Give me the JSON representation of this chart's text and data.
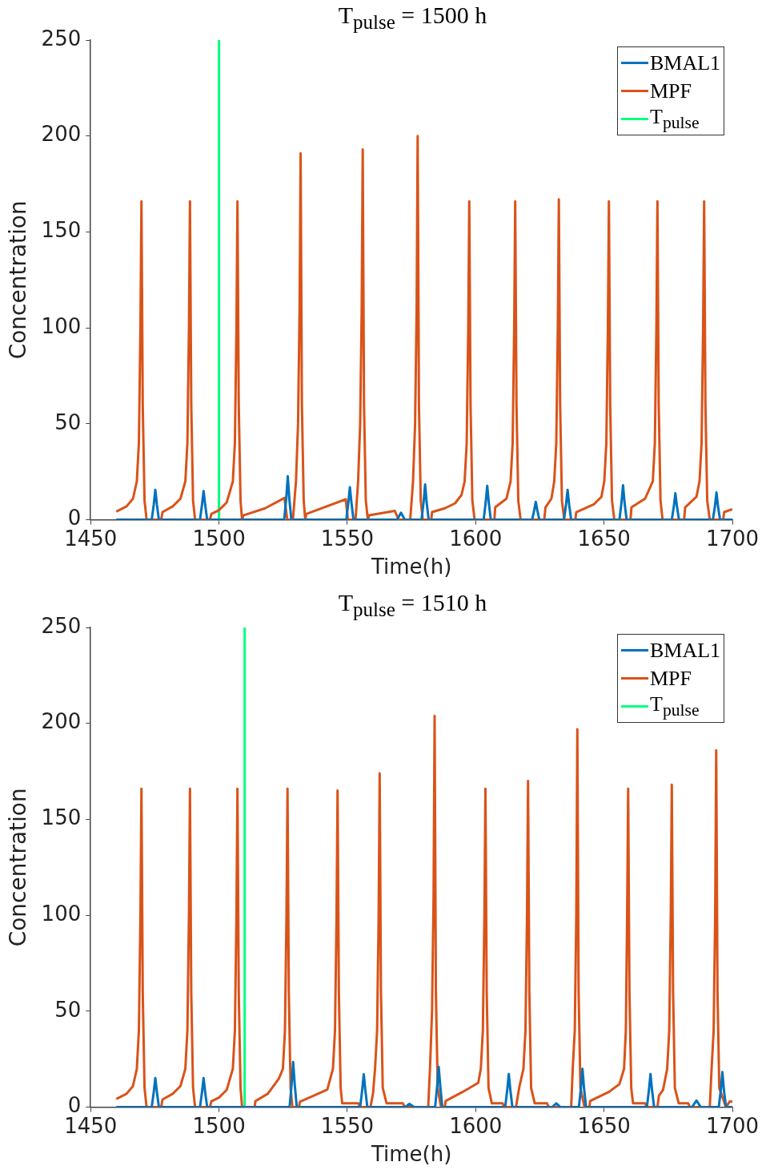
{
  "chart_data": [
    {
      "type": "line",
      "title": "T$_{pulse}$ = 1500 h",
      "xlabel": "Time(h)",
      "ylabel": "Concentration",
      "xlim": [
        1450,
        1700
      ],
      "xticks": [
        1450,
        1500,
        1550,
        1600,
        1650,
        1700
      ],
      "ylim": [
        0,
        250
      ],
      "yticks": [
        0,
        50,
        100,
        150,
        200,
        250
      ],
      "grid": false,
      "legend": "top right",
      "series": [
        {
          "name": "BMAL1",
          "color": "#0072bd",
          "x": [
            1460,
            1473.8,
            1474.6,
            1475.2,
            1475.8,
            1476.6,
            1492.6,
            1493.4,
            1494,
            1494.6,
            1495.4,
            1525.4,
            1526.2,
            1526.8,
            1527.4,
            1528.2,
            1549.6,
            1550.4,
            1551,
            1551.6,
            1552.4,
            1569.4,
            1570.9,
            1572.4,
            1578.9,
            1579.7,
            1580.3,
            1580.9,
            1581.7,
            1603.1,
            1603.9,
            1604.5,
            1605.1,
            1605.9,
            1622,
            1622.8,
            1623.4,
            1624,
            1624.8,
            1634.4,
            1635.2,
            1635.8,
            1636.4,
            1637.2,
            1656,
            1656.8,
            1657.4,
            1658,
            1658.8,
            1676.4,
            1677.2,
            1677.8,
            1678.4,
            1679.2,
            1692.4,
            1693.2,
            1693.8,
            1694.4,
            1695.2,
            1700
          ],
          "values": [
            0,
            0,
            8,
            15.6,
            8,
            0,
            0,
            8,
            15,
            8,
            0,
            0,
            11,
            22.7,
            11,
            0,
            0,
            9,
            17,
            9,
            0,
            0,
            3.7,
            0,
            0,
            9,
            18.4,
            9,
            0,
            0,
            9,
            17.7,
            9,
            0,
            0,
            5,
            9.3,
            5,
            0,
            0,
            8,
            15.6,
            8,
            0,
            0,
            9,
            18,
            9,
            0,
            0,
            7,
            13.8,
            7,
            0,
            0,
            7,
            14.2,
            7,
            0,
            0
          ]
        },
        {
          "name": "MPF",
          "color": "#d95319",
          "x": [
            1460,
            1464,
            1466.5,
            1468,
            1468.8,
            1469.4,
            1469.8,
            1470.3,
            1471,
            1471.8,
            1477.5,
            1478,
            1482,
            1485,
            1486.9,
            1487.7,
            1488.3,
            1488.7,
            1489.2,
            1489.9,
            1490.7,
            1496.5,
            1497,
            1500,
            1503,
            1505.4,
            1506.2,
            1506.8,
            1507.2,
            1507.7,
            1508.4,
            1509,
            1509.5,
            1518,
            1525.5,
            1526.6,
            1528.8,
            1530,
            1530.8,
            1531.4,
            1531.8,
            1532.3,
            1533,
            1533.6,
            1534,
            1542,
            1549.4,
            1550.2,
            1553.2,
            1554.2,
            1555,
            1555.6,
            1556,
            1556.5,
            1557.2,
            1558,
            1558.5,
            1568.5,
            1570,
            1574.5,
            1575.6,
            1576.4,
            1577,
            1577.4,
            1577.9,
            1578.6,
            1579.4,
            1582.7,
            1583,
            1588,
            1592,
            1594.5,
            1595.7,
            1596.5,
            1597.1,
            1597.5,
            1598,
            1598.7,
            1599.6,
            1607.3,
            1607.6,
            1612,
            1613.6,
            1614.4,
            1615,
            1615.4,
            1615.9,
            1616.6,
            1617.5,
            1626.7,
            1627.2,
            1629.5,
            1630.6,
            1631.4,
            1632,
            1632.4,
            1632.9,
            1633.6,
            1634.5,
            1638.8,
            1639.2,
            1646,
            1649,
            1650.1,
            1650.9,
            1651.5,
            1651.9,
            1652.4,
            1653.1,
            1654,
            1660.3,
            1660.7,
            1666,
            1669,
            1669.8,
            1670.4,
            1670.8,
            1671.3,
            1672,
            1672.8,
            1681.2,
            1681.6,
            1686,
            1687.2,
            1688,
            1688.6,
            1689,
            1689.5,
            1690.2,
            1691.2,
            1696.4,
            1696.8,
            1700
          ],
          "values": [
            4.3,
            7,
            11,
            20,
            40,
            100,
            166,
            60,
            10,
            0,
            0,
            4,
            7,
            11,
            20,
            40,
            100,
            166,
            60,
            10,
            0,
            0,
            3,
            5,
            9,
            20,
            40,
            100,
            166,
            60,
            10,
            0,
            2.3,
            6,
            11.4,
            0,
            0,
            20,
            50,
            110,
            191,
            60,
            10,
            0,
            3,
            7,
            10.7,
            0,
            0,
            20,
            50,
            110,
            193,
            60,
            10,
            0,
            2.3,
            4.6,
            0,
            0,
            20,
            50,
            110,
            200,
            60,
            10,
            0,
            0,
            4,
            6,
            8.6,
            13,
            20,
            40,
            100,
            166,
            60,
            10,
            0,
            0,
            6.5,
            11,
            20,
            40,
            100,
            166,
            60,
            10,
            0,
            0,
            6.5,
            11,
            20,
            40,
            100,
            167,
            60,
            10,
            0,
            0,
            4,
            8,
            12,
            20,
            40,
            100,
            166,
            60,
            10,
            0,
            0,
            6.5,
            11,
            20,
            40,
            100,
            166,
            60,
            10,
            0,
            0,
            6.5,
            12,
            20,
            40,
            100,
            166,
            60,
            10,
            0,
            0,
            4,
            5.5
          ]
        },
        {
          "name": "T$_{pulse}$",
          "color": "#00ff80",
          "x": [
            1500,
            1500
          ],
          "values": [
            0,
            250
          ]
        }
      ]
    },
    {
      "type": "line",
      "title": "T$_{pulse}$ = 1510 h",
      "xlabel": "Time(h)",
      "ylabel": "Concentration",
      "xlim": [
        1450,
        1700
      ],
      "xticks": [
        1450,
        1500,
        1550,
        1600,
        1650,
        1700
      ],
      "ylim": [
        0,
        250
      ],
      "yticks": [
        0,
        50,
        100,
        150,
        200,
        250
      ],
      "grid": false,
      "legend": "top right",
      "series": [
        {
          "name": "BMAL1",
          "color": "#0072bd",
          "x": [
            1460,
            1473.8,
            1474.6,
            1475.2,
            1475.8,
            1476.6,
            1492.6,
            1493.4,
            1494,
            1494.6,
            1495.4,
            1527.5,
            1528.3,
            1528.9,
            1529.5,
            1530.3,
            1555,
            1555.8,
            1556.4,
            1557,
            1557.8,
            1572.5,
            1574.2,
            1576,
            1584.2,
            1585,
            1585.6,
            1586.2,
            1587,
            1611.5,
            1612.3,
            1612.9,
            1613.5,
            1614.3,
            1629.8,
            1631.4,
            1633,
            1640.2,
            1641,
            1641.6,
            1642.2,
            1643,
            1666.7,
            1667.5,
            1668.1,
            1668.7,
            1669.5,
            1684.3,
            1686,
            1687.7,
            1694.7,
            1695.5,
            1696.1,
            1696.7,
            1697.5,
            1700
          ],
          "values": [
            0,
            0,
            8,
            15.2,
            8,
            0,
            0,
            8,
            15.2,
            8,
            0,
            0,
            12,
            23.5,
            12,
            0,
            0,
            9,
            17.2,
            9,
            0,
            0,
            1.7,
            0,
            0,
            11,
            21,
            11,
            0,
            0,
            9,
            17.3,
            9,
            0,
            0,
            2,
            0,
            0,
            10,
            20,
            10,
            0,
            0,
            9,
            17.3,
            9,
            0,
            0,
            3.5,
            0,
            0,
            9,
            18.3,
            9,
            0,
            0
          ]
        },
        {
          "name": "MPF",
          "color": "#d95319",
          "x": [
            1460,
            1464,
            1466.5,
            1468,
            1468.8,
            1469.4,
            1469.8,
            1470.3,
            1471,
            1471.8,
            1477.5,
            1478,
            1482,
            1485,
            1486.9,
            1487.7,
            1488.3,
            1488.7,
            1489.2,
            1489.9,
            1490.7,
            1496.5,
            1497,
            1500,
            1503,
            1505.4,
            1506.2,
            1506.8,
            1507.2,
            1507.7,
            1508.4,
            1509,
            1513.9,
            1514.2,
            1519,
            1523.3,
            1524.9,
            1525.7,
            1526.3,
            1526.7,
            1527.2,
            1527.9,
            1528.6,
            1531.2,
            1531.5,
            1537,
            1542.2,
            1544.4,
            1545.2,
            1545.8,
            1546.2,
            1546.7,
            1547.4,
            1548,
            1554.3,
            1555,
            1559,
            1560,
            1560.8,
            1561.6,
            1562.2,
            1562.6,
            1563.1,
            1563.8,
            1565.3,
            1571.6,
            1572.5,
            1581.5,
            1582.2,
            1583,
            1583.6,
            1584,
            1584.5,
            1585.2,
            1586.5,
            1588,
            1588.3,
            1595,
            1601,
            1602,
            1602.8,
            1603.4,
            1603.8,
            1604.3,
            1605,
            1606.3,
            1610.5,
            1611.2,
            1615.7,
            1617,
            1618.6,
            1619.4,
            1620,
            1620.4,
            1620.9,
            1621.6,
            1623,
            1627.8,
            1628.5,
            1637.2,
            1637.8,
            1638.6,
            1639.2,
            1639.6,
            1640.1,
            1640.8,
            1642.4,
            1644.3,
            1644.6,
            1652,
            1656,
            1657.8,
            1658.5,
            1659,
            1659.4,
            1659.9,
            1660.6,
            1661.3,
            1666,
            1666.7,
            1670.8,
            1671.4,
            1673,
            1674.6,
            1675.4,
            1676,
            1676.4,
            1676.9,
            1677.6,
            1679.1,
            1682.8,
            1683.5,
            1691.2,
            1691.9,
            1692.7,
            1693.3,
            1693.7,
            1694.2,
            1694.9,
            1697.5,
            1699,
            1700
          ],
          "values": [
            4.3,
            7,
            11,
            20,
            40,
            100,
            166,
            60,
            10,
            0,
            0,
            4,
            7,
            11,
            20,
            40,
            100,
            166,
            60,
            10,
            0,
            0,
            3,
            5,
            9,
            20,
            40,
            100,
            166,
            60,
            10,
            0,
            0,
            3.2,
            7,
            14.8,
            20,
            40,
            100,
            166,
            60,
            10,
            0,
            0,
            2.8,
            6,
            9.2,
            20,
            40,
            100,
            165,
            60,
            10,
            2,
            2,
            0,
            0,
            7,
            20,
            40,
            100,
            174,
            60,
            10,
            2,
            2,
            0,
            0,
            20,
            50,
            110,
            204,
            60,
            10,
            0,
            0,
            3.2,
            8,
            12.7,
            20,
            40,
            100,
            166,
            60,
            10,
            2,
            2,
            0,
            0,
            10.5,
            20,
            40,
            100,
            170,
            60,
            10,
            2,
            2,
            0,
            0,
            20,
            40,
            100,
            197,
            60,
            10,
            0,
            0,
            3.2,
            8,
            12,
            20,
            40,
            100,
            166,
            60,
            10,
            2,
            2,
            0,
            0,
            6,
            9,
            20,
            40,
            100,
            168,
            60,
            10,
            2,
            2,
            0,
            0,
            20,
            40,
            100,
            186,
            60,
            10,
            0,
            3,
            3
          ]
        },
        {
          "name": "T$_{pulse}$",
          "color": "#00ff80",
          "x": [
            1510,
            1510
          ],
          "values": [
            0,
            250
          ]
        }
      ]
    }
  ]
}
